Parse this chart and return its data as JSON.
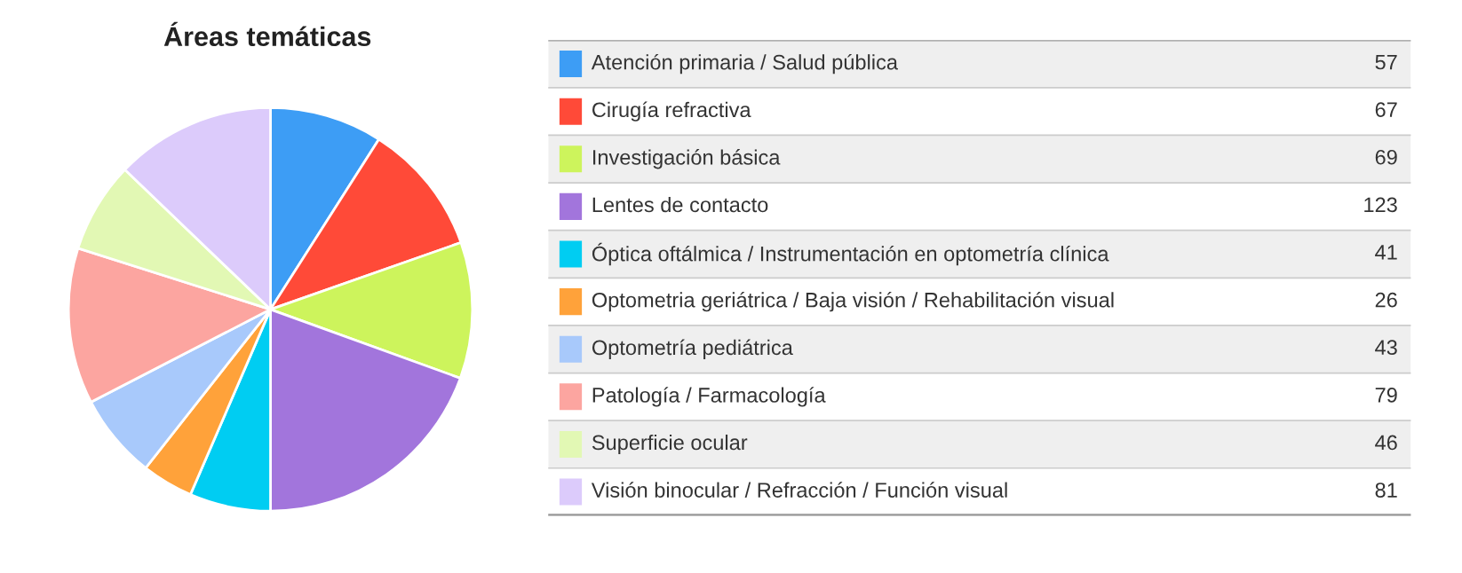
{
  "chart_data": {
    "type": "pie",
    "title": "Áreas temáticas",
    "categories": [
      "Atención primaria / Salud pública",
      "Cirugía refractiva",
      "Investigación básica",
      "Lentes de contacto",
      "Óptica oftálmica / Instrumentación en optometría clínica",
      "Optometria geriátrica / Baja visión / Rehabilitación visual",
      "Optometría pediátrica",
      "Patología / Farmacología",
      "Superficie ocular",
      "Visión binocular / Refracción / Función visual"
    ],
    "values": [
      57,
      67,
      69,
      123,
      41,
      26,
      43,
      79,
      46,
      81
    ],
    "colors": [
      "#3d9df5",
      "#ff4a38",
      "#cdf45c",
      "#a275dc",
      "#00cdf2",
      "#ffa23a",
      "#a8c9fb",
      "#fca5a0",
      "#e2f8b4",
      "#dccbfb"
    ],
    "data_labels": true,
    "legend": "right"
  }
}
